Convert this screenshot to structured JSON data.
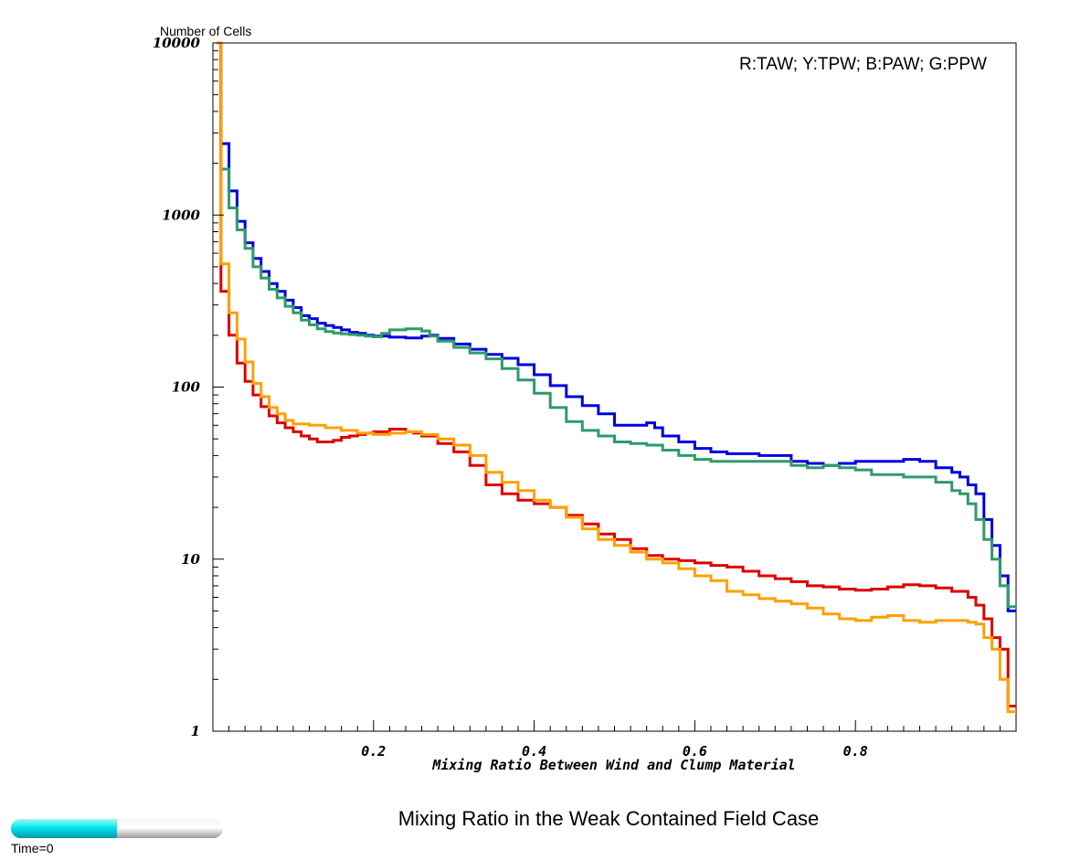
{
  "chart_data": {
    "type": "line",
    "title": "Mixing Ratio in the Weak Contained Field Case",
    "xlabel": "Mixing Ratio Between Wind and Clump Material",
    "ylabel": "Number of Cells",
    "yscale": "log",
    "xlim": [
      0.0,
      1.0
    ],
    "ylim": [
      1,
      10000
    ],
    "x_ticks": [
      0.2,
      0.4,
      0.6,
      0.8
    ],
    "x_tick_labels": [
      "0.2",
      "0.4",
      "0.6",
      "0.8"
    ],
    "y_ticks": [
      1,
      10,
      100,
      1000,
      10000
    ],
    "y_tick_labels": [
      "1",
      "10",
      "100",
      "1000",
      "10000"
    ],
    "annotation": "R:TAW; Y:TPW; B:PAW; G:PPW",
    "grid": false,
    "series": [
      {
        "color": "#0000dd",
        "points": [
          [
            0.005,
            10000
          ],
          [
            0.01,
            2600
          ],
          [
            0.02,
            1380
          ],
          [
            0.03,
            920
          ],
          [
            0.04,
            690
          ],
          [
            0.05,
            560
          ],
          [
            0.06,
            470
          ],
          [
            0.07,
            400
          ],
          [
            0.08,
            360
          ],
          [
            0.09,
            320
          ],
          [
            0.1,
            290
          ],
          [
            0.11,
            260
          ],
          [
            0.12,
            250
          ],
          [
            0.13,
            235
          ],
          [
            0.14,
            228
          ],
          [
            0.15,
            222
          ],
          [
            0.16,
            215
          ],
          [
            0.17,
            208
          ],
          [
            0.18,
            205
          ],
          [
            0.19,
            200
          ],
          [
            0.2,
            198
          ],
          [
            0.22,
            195
          ],
          [
            0.24,
            193
          ],
          [
            0.26,
            198
          ],
          [
            0.27,
            200
          ],
          [
            0.28,
            192
          ],
          [
            0.3,
            178
          ],
          [
            0.32,
            166
          ],
          [
            0.34,
            155
          ],
          [
            0.36,
            147
          ],
          [
            0.38,
            135
          ],
          [
            0.4,
            118
          ],
          [
            0.42,
            102
          ],
          [
            0.44,
            88
          ],
          [
            0.46,
            78
          ],
          [
            0.48,
            70
          ],
          [
            0.5,
            60
          ],
          [
            0.52,
            60
          ],
          [
            0.54,
            62
          ],
          [
            0.55,
            58
          ],
          [
            0.56,
            52
          ],
          [
            0.58,
            48
          ],
          [
            0.6,
            44
          ],
          [
            0.62,
            42
          ],
          [
            0.64,
            41
          ],
          [
            0.66,
            41
          ],
          [
            0.68,
            40
          ],
          [
            0.7,
            40
          ],
          [
            0.72,
            37
          ],
          [
            0.74,
            36
          ],
          [
            0.76,
            35
          ],
          [
            0.78,
            36
          ],
          [
            0.8,
            37
          ],
          [
            0.82,
            37
          ],
          [
            0.84,
            37
          ],
          [
            0.86,
            38
          ],
          [
            0.88,
            37
          ],
          [
            0.9,
            34
          ],
          [
            0.92,
            32
          ],
          [
            0.93,
            30
          ],
          [
            0.94,
            27
          ],
          [
            0.95,
            24
          ],
          [
            0.96,
            17
          ],
          [
            0.97,
            12
          ],
          [
            0.98,
            8
          ],
          [
            0.99,
            5
          ],
          [
            1.0,
            5
          ]
        ]
      },
      {
        "color": "#2e9b6a",
        "points": [
          [
            0.005,
            10000
          ],
          [
            0.01,
            1850
          ],
          [
            0.02,
            1100
          ],
          [
            0.03,
            820
          ],
          [
            0.04,
            640
          ],
          [
            0.05,
            500
          ],
          [
            0.06,
            430
          ],
          [
            0.07,
            370
          ],
          [
            0.08,
            330
          ],
          [
            0.09,
            295
          ],
          [
            0.1,
            270
          ],
          [
            0.11,
            245
          ],
          [
            0.12,
            230
          ],
          [
            0.13,
            218
          ],
          [
            0.14,
            210
          ],
          [
            0.15,
            206
          ],
          [
            0.16,
            204
          ],
          [
            0.17,
            202
          ],
          [
            0.18,
            200
          ],
          [
            0.19,
            198
          ],
          [
            0.2,
            196
          ],
          [
            0.21,
            205
          ],
          [
            0.22,
            215
          ],
          [
            0.24,
            218
          ],
          [
            0.26,
            212
          ],
          [
            0.27,
            198
          ],
          [
            0.28,
            185
          ],
          [
            0.3,
            170
          ],
          [
            0.32,
            158
          ],
          [
            0.34,
            146
          ],
          [
            0.36,
            128
          ],
          [
            0.38,
            110
          ],
          [
            0.4,
            92
          ],
          [
            0.42,
            76
          ],
          [
            0.44,
            63
          ],
          [
            0.46,
            56
          ],
          [
            0.48,
            52
          ],
          [
            0.5,
            48
          ],
          [
            0.52,
            47
          ],
          [
            0.54,
            46
          ],
          [
            0.56,
            43
          ],
          [
            0.58,
            40
          ],
          [
            0.6,
            38
          ],
          [
            0.62,
            37
          ],
          [
            0.64,
            37
          ],
          [
            0.66,
            37
          ],
          [
            0.68,
            37
          ],
          [
            0.7,
            37
          ],
          [
            0.72,
            35
          ],
          [
            0.74,
            34
          ],
          [
            0.76,
            35
          ],
          [
            0.78,
            34
          ],
          [
            0.8,
            33
          ],
          [
            0.82,
            31
          ],
          [
            0.84,
            31
          ],
          [
            0.86,
            30
          ],
          [
            0.88,
            30
          ],
          [
            0.9,
            28
          ],
          [
            0.92,
            25
          ],
          [
            0.93,
            24
          ],
          [
            0.94,
            21
          ],
          [
            0.95,
            17
          ],
          [
            0.96,
            13
          ],
          [
            0.97,
            10
          ],
          [
            0.98,
            7
          ],
          [
            0.99,
            5.3
          ],
          [
            1.0,
            5.3
          ]
        ]
      },
      {
        "color": "#dd0000",
        "points": [
          [
            0.005,
            10000
          ],
          [
            0.01,
            360
          ],
          [
            0.02,
            200
          ],
          [
            0.03,
            138
          ],
          [
            0.04,
            108
          ],
          [
            0.05,
            90
          ],
          [
            0.06,
            77
          ],
          [
            0.07,
            68
          ],
          [
            0.08,
            62
          ],
          [
            0.09,
            58
          ],
          [
            0.1,
            55
          ],
          [
            0.11,
            52
          ],
          [
            0.12,
            50
          ],
          [
            0.13,
            48
          ],
          [
            0.14,
            48
          ],
          [
            0.15,
            49
          ],
          [
            0.16,
            51
          ],
          [
            0.17,
            52
          ],
          [
            0.18,
            53
          ],
          [
            0.19,
            54
          ],
          [
            0.2,
            55
          ],
          [
            0.22,
            57
          ],
          [
            0.24,
            55
          ],
          [
            0.25,
            54
          ],
          [
            0.26,
            52
          ],
          [
            0.28,
            47
          ],
          [
            0.3,
            42
          ],
          [
            0.32,
            35
          ],
          [
            0.34,
            27
          ],
          [
            0.36,
            24
          ],
          [
            0.38,
            22
          ],
          [
            0.4,
            21
          ],
          [
            0.42,
            20
          ],
          [
            0.44,
            18
          ],
          [
            0.46,
            16
          ],
          [
            0.48,
            14
          ],
          [
            0.5,
            13
          ],
          [
            0.52,
            11.5
          ],
          [
            0.54,
            10.5
          ],
          [
            0.56,
            10
          ],
          [
            0.58,
            9.8
          ],
          [
            0.6,
            9.5
          ],
          [
            0.62,
            9.2
          ],
          [
            0.64,
            9
          ],
          [
            0.66,
            8.5
          ],
          [
            0.68,
            8
          ],
          [
            0.7,
            7.7
          ],
          [
            0.72,
            7.4
          ],
          [
            0.74,
            7
          ],
          [
            0.76,
            6.9
          ],
          [
            0.78,
            6.7
          ],
          [
            0.8,
            6.6
          ],
          [
            0.82,
            6.7
          ],
          [
            0.84,
            6.9
          ],
          [
            0.86,
            7.1
          ],
          [
            0.88,
            7
          ],
          [
            0.9,
            6.8
          ],
          [
            0.92,
            6.5
          ],
          [
            0.94,
            6
          ],
          [
            0.95,
            5.4
          ],
          [
            0.96,
            4.5
          ],
          [
            0.97,
            3.5
          ],
          [
            0.98,
            3
          ],
          [
            0.99,
            1.4
          ],
          [
            1.0,
            1.4
          ]
        ]
      },
      {
        "color": "#ffa000",
        "points": [
          [
            0.005,
            10000
          ],
          [
            0.01,
            520
          ],
          [
            0.02,
            270
          ],
          [
            0.03,
            190
          ],
          [
            0.04,
            140
          ],
          [
            0.05,
            105
          ],
          [
            0.06,
            88
          ],
          [
            0.07,
            76
          ],
          [
            0.08,
            70
          ],
          [
            0.09,
            64
          ],
          [
            0.1,
            61
          ],
          [
            0.12,
            60
          ],
          [
            0.14,
            58
          ],
          [
            0.16,
            56
          ],
          [
            0.18,
            54
          ],
          [
            0.2,
            53
          ],
          [
            0.22,
            54
          ],
          [
            0.24,
            55
          ],
          [
            0.26,
            53
          ],
          [
            0.28,
            50
          ],
          [
            0.3,
            46
          ],
          [
            0.32,
            40
          ],
          [
            0.34,
            32
          ],
          [
            0.36,
            28
          ],
          [
            0.38,
            25
          ],
          [
            0.4,
            22
          ],
          [
            0.42,
            20
          ],
          [
            0.44,
            17.5
          ],
          [
            0.46,
            15
          ],
          [
            0.48,
            13
          ],
          [
            0.5,
            12
          ],
          [
            0.52,
            11
          ],
          [
            0.54,
            10
          ],
          [
            0.56,
            9.5
          ],
          [
            0.58,
            8.8
          ],
          [
            0.6,
            8
          ],
          [
            0.62,
            7.5
          ],
          [
            0.64,
            6.5
          ],
          [
            0.66,
            6.2
          ],
          [
            0.68,
            5.9
          ],
          [
            0.7,
            5.7
          ],
          [
            0.72,
            5.5
          ],
          [
            0.74,
            5.2
          ],
          [
            0.76,
            4.8
          ],
          [
            0.78,
            4.5
          ],
          [
            0.8,
            4.4
          ],
          [
            0.82,
            4.6
          ],
          [
            0.84,
            4.7
          ],
          [
            0.86,
            4.4
          ],
          [
            0.88,
            4.3
          ],
          [
            0.9,
            4.4
          ],
          [
            0.92,
            4.4
          ],
          [
            0.94,
            4.3
          ],
          [
            0.95,
            4.2
          ],
          [
            0.96,
            3.5
          ],
          [
            0.97,
            3
          ],
          [
            0.98,
            2
          ],
          [
            0.99,
            1.3
          ],
          [
            1.0,
            1.3
          ]
        ]
      }
    ]
  },
  "time_slider": {
    "label": "Time=0",
    "progress": 0.5,
    "fill_color": "#00e0e8"
  }
}
